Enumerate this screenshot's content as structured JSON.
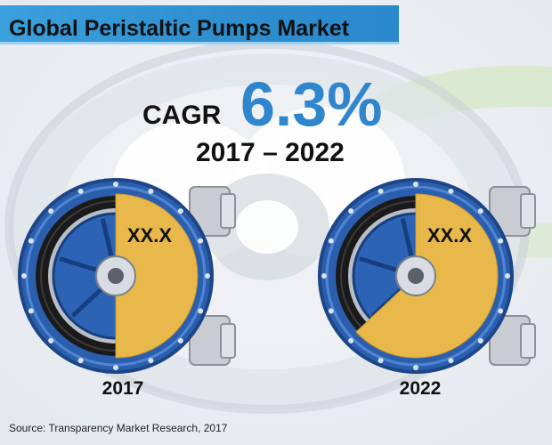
{
  "title": "Global Peristaltic Pumps Market",
  "cagr": {
    "label": "CAGR",
    "value": "6.3%",
    "period": "2017 – 2022"
  },
  "source": "Source: Transparency Market Research, 2017",
  "colors": {
    "title_bar": "#2f8fd0",
    "accent": "#2f86cc",
    "slice": "#e8b94a",
    "pump_body": "#2b5fae"
  },
  "chart_data": {
    "type": "pie",
    "charts": [
      {
        "category": "2017",
        "label": "XX.X",
        "fraction": 0.5
      },
      {
        "category": "2022",
        "label": "XX.X",
        "fraction": 0.63
      }
    ]
  }
}
